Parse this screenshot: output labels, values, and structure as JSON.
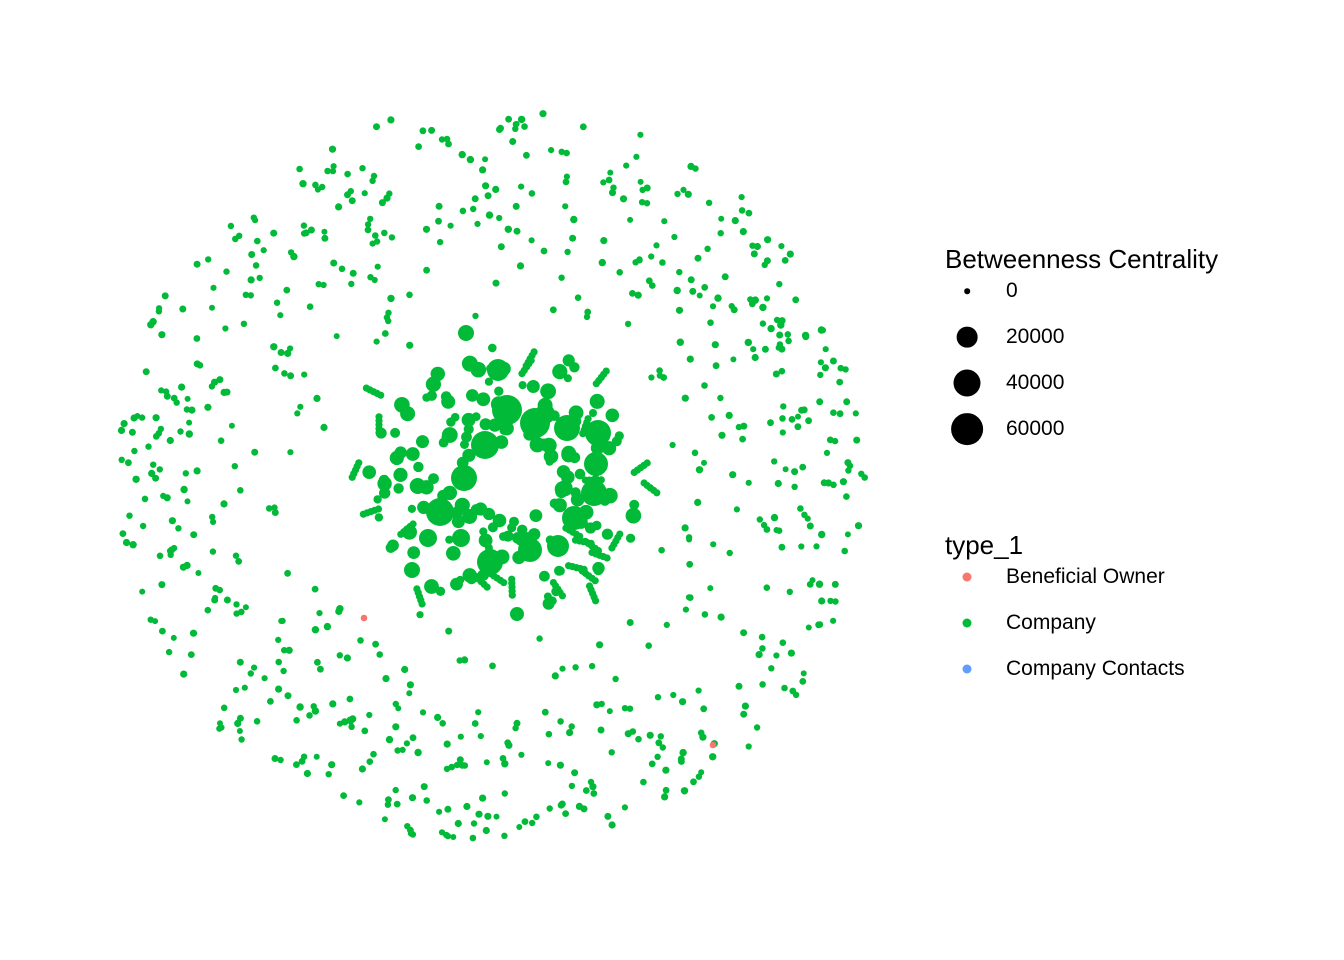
{
  "legend": {
    "size": {
      "title": "Betweenness Centrality",
      "entries": [
        {
          "label": "0",
          "value": 0
        },
        {
          "label": "20000",
          "value": 20000
        },
        {
          "label": "40000",
          "value": 40000
        },
        {
          "label": "60000",
          "value": 60000
        }
      ]
    },
    "type": {
      "title": "type_1",
      "entries": [
        {
          "label": "Beneficial Owner",
          "color": "#f8766d"
        },
        {
          "label": "Company",
          "color": "#00ba38"
        },
        {
          "label": "Company Contacts",
          "color": "#619cff"
        }
      ]
    }
  }
}
